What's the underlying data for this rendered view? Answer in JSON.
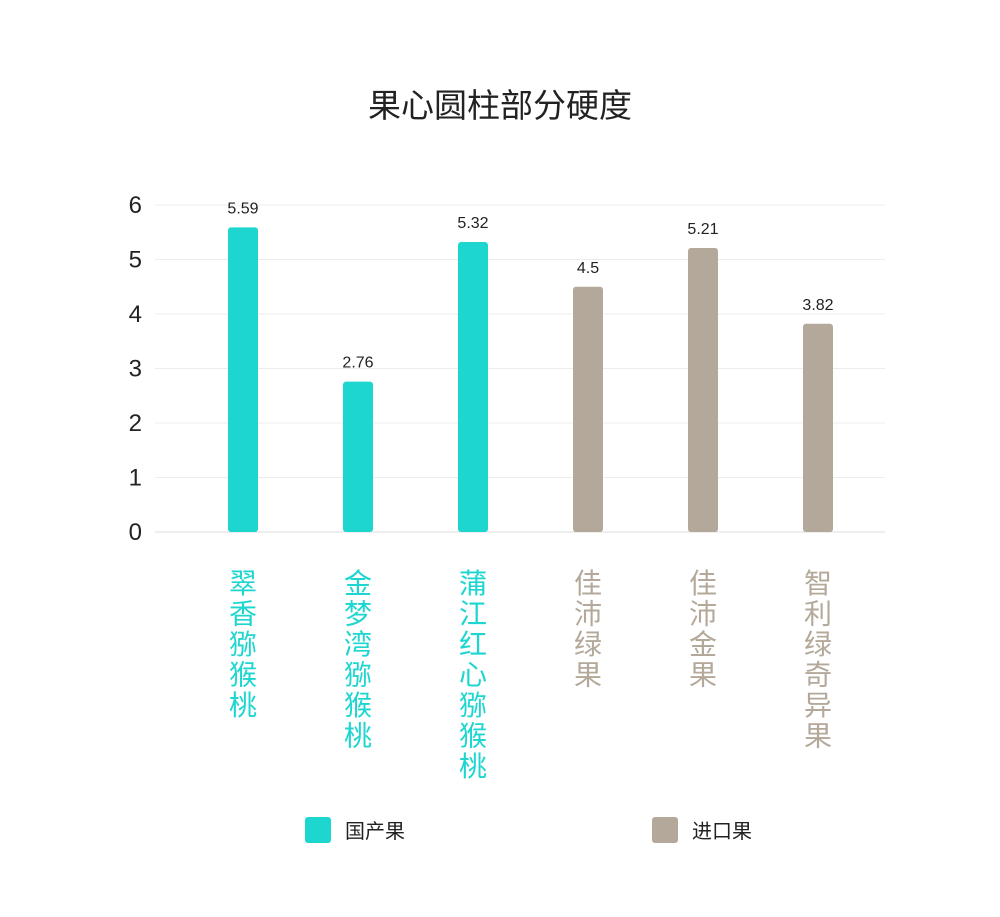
{
  "chart_data": {
    "type": "bar",
    "title": "果心圆柱部分硬度",
    "xlabel": "",
    "ylabel": "",
    "ylim": [
      0,
      6
    ],
    "yticks": [
      0,
      1,
      2,
      3,
      4,
      5,
      6
    ],
    "grid": true,
    "legend_position": "bottom",
    "categories": [
      "翠香猕猴桃",
      "金梦湾猕猴桃",
      "蒲江红心猕猴桃",
      "佳沛绿果",
      "佳沛金果",
      "智利绿奇异果"
    ],
    "values": [
      5.59,
      2.76,
      5.32,
      4.5,
      5.21,
      3.82
    ],
    "value_labels": [
      "5.59",
      "2.76",
      "5.32",
      "4.5",
      "5.21",
      "3.82"
    ],
    "groups": [
      "国产果",
      "国产果",
      "国产果",
      "进口果",
      "进口果",
      "进口果"
    ],
    "legend": [
      {
        "name": "国产果",
        "color": "#1ed6d0"
      },
      {
        "name": "进口果",
        "color": "#b3a899"
      }
    ]
  }
}
